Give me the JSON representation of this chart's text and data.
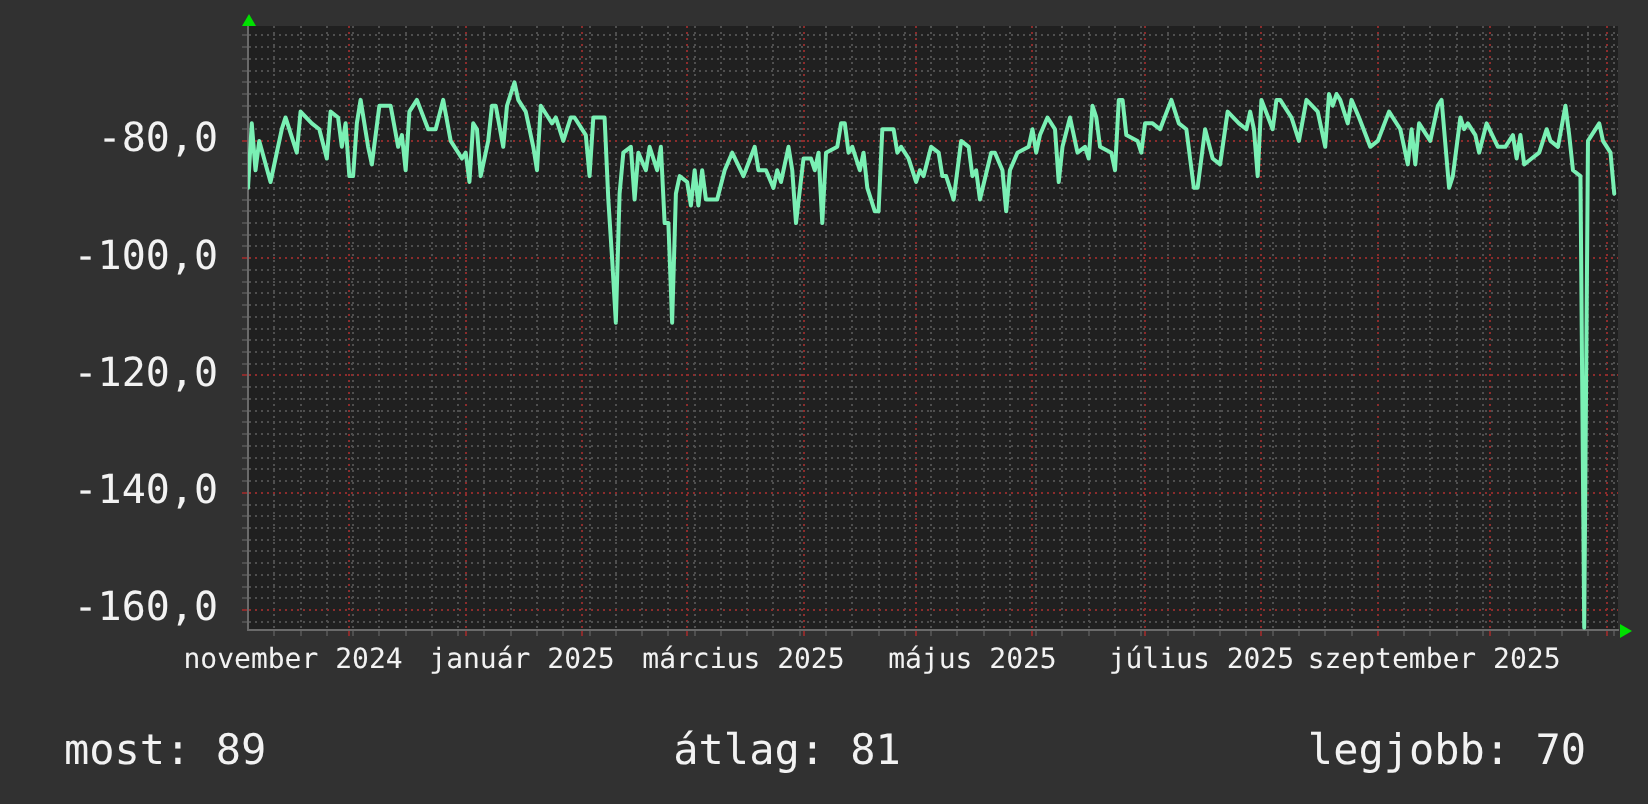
{
  "chart_data": {
    "type": "line",
    "color": "#7af0b4",
    "x": [
      "2024-11-04",
      "2024-11-05",
      "2024-11-06",
      "2024-11-07",
      "2024-11-10",
      "2024-11-13",
      "2024-11-14",
      "2024-11-17",
      "2024-11-18",
      "2024-11-21",
      "2024-11-23",
      "2024-11-25",
      "2024-11-26",
      "2024-11-28",
      "2024-11-29",
      "2024-11-30",
      "2024-12-01",
      "2024-12-02",
      "2024-12-03",
      "2024-12-04",
      "2024-12-06",
      "2024-12-07",
      "2024-12-09",
      "2024-12-12",
      "2024-12-14",
      "2024-12-15",
      "2024-12-16",
      "2024-12-17",
      "2024-12-19",
      "2024-12-22",
      "2024-12-24",
      "2024-12-26",
      "2024-12-28",
      "2024-12-31",
      "2025-01-01",
      "2025-01-02",
      "2025-01-03",
      "2025-01-04",
      "2025-01-05",
      "2025-01-07",
      "2025-01-08",
      "2025-01-09",
      "2025-01-11",
      "2025-01-12",
      "2025-01-14",
      "2025-01-15",
      "2025-01-17",
      "2025-01-19",
      "2025-01-20",
      "2025-01-21",
      "2025-01-23",
      "2025-01-24",
      "2025-01-25",
      "2025-01-27",
      "2025-01-29",
      "2025-01-30",
      "2025-02-02",
      "2025-02-03",
      "2025-02-04",
      "2025-02-07",
      "2025-02-08",
      "2025-02-09",
      "2025-02-10",
      "2025-02-11",
      "2025-02-12",
      "2025-02-14",
      "2025-02-15",
      "2025-02-16",
      "2025-02-18",
      "2025-02-19",
      "2025-02-21",
      "2025-02-22",
      "2025-02-23",
      "2025-02-24",
      "2025-02-25",
      "2025-02-26",
      "2025-02-27",
      "2025-03-01",
      "2025-03-02",
      "2025-03-03",
      "2025-03-04",
      "2025-03-05",
      "2025-03-06",
      "2025-03-09",
      "2025-03-11",
      "2025-03-13",
      "2025-03-16",
      "2025-03-19",
      "2025-03-20",
      "2025-03-22",
      "2025-03-24",
      "2025-03-25",
      "2025-03-26",
      "2025-03-28",
      "2025-03-29",
      "2025-03-30",
      "2025-04-01",
      "2025-04-03",
      "2025-04-04",
      "2025-04-05",
      "2025-04-06",
      "2025-04-07",
      "2025-04-10",
      "2025-04-11",
      "2025-04-12",
      "2025-04-13",
      "2025-04-14",
      "2025-04-16",
      "2025-04-17",
      "2025-04-18",
      "2025-04-20",
      "2025-04-21",
      "2025-04-22",
      "2025-04-25",
      "2025-04-26",
      "2025-04-27",
      "2025-04-29",
      "2025-05-01",
      "2025-05-02",
      "2025-05-03",
      "2025-05-05",
      "2025-05-07",
      "2025-05-08",
      "2025-05-09",
      "2025-05-11",
      "2025-05-13",
      "2025-05-15",
      "2025-05-16",
      "2025-05-17",
      "2025-05-18",
      "2025-05-21",
      "2025-05-22",
      "2025-05-24",
      "2025-05-25",
      "2025-05-26",
      "2025-05-28",
      "2025-05-31",
      "2025-06-01",
      "2025-06-02",
      "2025-06-03",
      "2025-06-05",
      "2025-06-07",
      "2025-06-08",
      "2025-06-09",
      "2025-06-11",
      "2025-06-13",
      "2025-06-15",
      "2025-06-16",
      "2025-06-17",
      "2025-06-18",
      "2025-06-19",
      "2025-06-22",
      "2025-06-23",
      "2025-06-24",
      "2025-06-25",
      "2025-06-26",
      "2025-06-29",
      "2025-06-30",
      "2025-07-01",
      "2025-07-03",
      "2025-07-05",
      "2025-07-08",
      "2025-07-10",
      "2025-07-12",
      "2025-07-14",
      "2025-07-15",
      "2025-07-17",
      "2025-07-19",
      "2025-07-21",
      "2025-07-23",
      "2025-07-26",
      "2025-07-28",
      "2025-07-29",
      "2025-07-30",
      "2025-07-31",
      "2025-08-01",
      "2025-08-04",
      "2025-08-05",
      "2025-08-06",
      "2025-08-09",
      "2025-08-11",
      "2025-08-13",
      "2025-08-16",
      "2025-08-18",
      "2025-08-19",
      "2025-08-20",
      "2025-08-21",
      "2025-08-22",
      "2025-08-24",
      "2025-08-25",
      "2025-08-27",
      "2025-08-30",
      "2025-09-01",
      "2025-09-04",
      "2025-09-07",
      "2025-09-09",
      "2025-09-10",
      "2025-09-11",
      "2025-09-12",
      "2025-09-14",
      "2025-09-15",
      "2025-09-17",
      "2025-09-18",
      "2025-09-20",
      "2025-09-21",
      "2025-09-23",
      "2025-09-24",
      "2025-09-25",
      "2025-09-27",
      "2025-09-28",
      "2025-09-30",
      "2025-10-03",
      "2025-10-05",
      "2025-10-07",
      "2025-10-08",
      "2025-10-09",
      "2025-10-10",
      "2025-10-12",
      "2025-10-14",
      "2025-10-16",
      "2025-10-17",
      "2025-10-19",
      "2025-10-21",
      "2025-10-22",
      "2025-10-23",
      "2025-10-25",
      "2025-10-26",
      "2025-10-27",
      "2025-10-30",
      "2025-10-31",
      "2025-11-02",
      "2025-11-03"
    ],
    "values": [
      -88,
      -77,
      -85,
      -80,
      -87,
      -78,
      -76,
      -82,
      -75,
      -77,
      -78,
      -83,
      -75,
      -76,
      -81,
      -77,
      -86,
      -86,
      -77,
      -73,
      -81,
      -84,
      -74,
      -74,
      -81,
      -79,
      -85,
      -75,
      -73,
      -78,
      -78,
      -73,
      -80,
      -83,
      -82,
      -87,
      -77,
      -78,
      -86,
      -80,
      -74,
      -74,
      -81,
      -74,
      -70,
      -73,
      -75,
      -81,
      -85,
      -74,
      -76,
      -77,
      -76,
      -80,
      -76,
      -76,
      -79,
      -86,
      -76,
      -76,
      -90,
      -100,
      -111,
      -89,
      -82,
      -81,
      -90,
      -82,
      -85,
      -81,
      -85,
      -81,
      -94,
      -94,
      -111,
      -89,
      -86,
      -87,
      -91,
      -85,
      -91,
      -85,
      -90,
      -90,
      -85,
      -82,
      -86,
      -81,
      -85,
      -85,
      -88,
      -85,
      -87,
      -81,
      -85,
      -94,
      -83,
      -83,
      -85,
      -82,
      -94,
      -82,
      -81,
      -77,
      -77,
      -82,
      -81,
      -85,
      -82,
      -88,
      -92,
      -92,
      -78,
      -78,
      -82,
      -81,
      -83,
      -87,
      -85,
      -86,
      -81,
      -82,
      -86,
      -86,
      -90,
      -80,
      -81,
      -86,
      -85,
      -90,
      -82,
      -82,
      -85,
      -92,
      -85,
      -82,
      -81,
      -78,
      -82,
      -79,
      -76,
      -78,
      -87,
      -81,
      -76,
      -82,
      -81,
      -83,
      -74,
      -76,
      -81,
      -82,
      -85,
      -73,
      -73,
      -79,
      -80,
      -82,
      -77,
      -77,
      -78,
      -73,
      -77,
      -78,
      -88,
      -88,
      -78,
      -83,
      -84,
      -75,
      -77,
      -78,
      -75,
      -78,
      -86,
      -73,
      -78,
      -73,
      -73,
      -76,
      -80,
      -73,
      -75,
      -81,
      -72,
      -74,
      -72,
      -73,
      -77,
      -73,
      -76,
      -81,
      -80,
      -75,
      -78,
      -84,
      -78,
      -84,
      -77,
      -79,
      -80,
      -74,
      -73,
      -88,
      -86,
      -76,
      -78,
      -77,
      -79,
      -82,
      -77,
      -81,
      -81,
      -79,
      -83,
      -79,
      -84,
      -83,
      -82,
      -78,
      -80,
      -81,
      -74,
      -79,
      -85,
      -86,
      -163,
      -80,
      -77,
      -80,
      -82,
      -89
    ],
    "xlim": [
      "2024-11-04",
      "2025-11-04"
    ],
    "xticks": [
      {
        "value": "2024-11-11",
        "label": null
      },
      {
        "value": "2024-11-16",
        "label": "november 2024"
      },
      {
        "value": "2024-11-18",
        "label": null
      },
      {
        "value": "2024-11-25",
        "label": null
      },
      {
        "value": "2024-12-01",
        "label": null
      },
      {
        "value": "2024-12-02",
        "label": null
      },
      {
        "value": "2024-12-09",
        "label": null
      },
      {
        "value": "2024-12-16",
        "label": null
      },
      {
        "value": "2024-12-23",
        "label": null
      },
      {
        "value": "2024-12-30",
        "label": null
      },
      {
        "value": "2025-01-01",
        "label": null
      },
      {
        "value": "2025-01-06",
        "label": null
      },
      {
        "value": "2025-01-13",
        "label": null
      },
      {
        "value": "2025-01-16",
        "label": "január 2025"
      },
      {
        "value": "2025-01-20",
        "label": null
      },
      {
        "value": "2025-01-27",
        "label": null
      },
      {
        "value": "2025-02-01",
        "label": null
      },
      {
        "value": "2025-02-03",
        "label": null
      },
      {
        "value": "2025-02-10",
        "label": null
      },
      {
        "value": "2025-02-17",
        "label": null
      },
      {
        "value": "2025-02-24",
        "label": null
      },
      {
        "value": "2025-03-01",
        "label": null
      },
      {
        "value": "2025-03-03",
        "label": null
      },
      {
        "value": "2025-03-10",
        "label": null
      },
      {
        "value": "2025-03-16",
        "label": "március 2025"
      },
      {
        "value": "2025-03-17",
        "label": null
      },
      {
        "value": "2025-03-24",
        "label": null
      },
      {
        "value": "2025-03-31",
        "label": null
      },
      {
        "value": "2025-04-01",
        "label": null
      },
      {
        "value": "2025-04-07",
        "label": null
      },
      {
        "value": "2025-04-14",
        "label": null
      },
      {
        "value": "2025-04-21",
        "label": null
      },
      {
        "value": "2025-04-28",
        "label": null
      },
      {
        "value": "2025-05-01",
        "label": null
      },
      {
        "value": "2025-05-05",
        "label": null
      },
      {
        "value": "2025-05-12",
        "label": null
      },
      {
        "value": "2025-05-16",
        "label": "május 2025"
      },
      {
        "value": "2025-05-19",
        "label": null
      },
      {
        "value": "2025-05-26",
        "label": null
      },
      {
        "value": "2025-06-01",
        "label": null
      },
      {
        "value": "2025-06-02",
        "label": null
      },
      {
        "value": "2025-06-09",
        "label": null
      },
      {
        "value": "2025-06-16",
        "label": null
      },
      {
        "value": "2025-06-23",
        "label": null
      },
      {
        "value": "2025-06-30",
        "label": null
      },
      {
        "value": "2025-07-01",
        "label": null
      },
      {
        "value": "2025-07-07",
        "label": null
      },
      {
        "value": "2025-07-14",
        "label": null
      },
      {
        "value": "2025-07-16",
        "label": "július 2025"
      },
      {
        "value": "2025-07-21",
        "label": null
      },
      {
        "value": "2025-07-28",
        "label": null
      },
      {
        "value": "2025-08-01",
        "label": null
      },
      {
        "value": "2025-08-04",
        "label": null
      },
      {
        "value": "2025-08-11",
        "label": null
      },
      {
        "value": "2025-08-18",
        "label": null
      },
      {
        "value": "2025-08-25",
        "label": null
      },
      {
        "value": "2025-09-01",
        "label": null
      },
      {
        "value": "2025-09-08",
        "label": null
      },
      {
        "value": "2025-09-15",
        "label": null
      },
      {
        "value": "2025-09-16",
        "label": "szeptember 2025"
      },
      {
        "value": "2025-09-22",
        "label": null
      },
      {
        "value": "2025-09-29",
        "label": null
      },
      {
        "value": "2025-10-01",
        "label": null
      },
      {
        "value": "2025-10-06",
        "label": null
      },
      {
        "value": "2025-10-13",
        "label": null
      },
      {
        "value": "2025-10-20",
        "label": null
      },
      {
        "value": "2025-10-27",
        "label": null
      },
      {
        "value": "2025-11-01",
        "label": null
      },
      {
        "value": "2025-11-03",
        "label": null
      }
    ],
    "ylim": [
      -163.4,
      -60.4
    ],
    "yticks": [
      {
        "value": -162,
        "label": null
      },
      {
        "value": -160,
        "label": "-160,0"
      },
      {
        "value": -158,
        "label": null
      },
      {
        "value": -156,
        "label": null
      },
      {
        "value": -154,
        "label": null
      },
      {
        "value": -152,
        "label": null
      },
      {
        "value": -150,
        "label": null
      },
      {
        "value": -148,
        "label": null
      },
      {
        "value": -146,
        "label": null
      },
      {
        "value": -144,
        "label": null
      },
      {
        "value": -142,
        "label": null
      },
      {
        "value": -140,
        "label": "-140,0"
      },
      {
        "value": -138,
        "label": null
      },
      {
        "value": -136,
        "label": null
      },
      {
        "value": -134,
        "label": null
      },
      {
        "value": -132,
        "label": null
      },
      {
        "value": -130,
        "label": null
      },
      {
        "value": -128,
        "label": null
      },
      {
        "value": -126,
        "label": null
      },
      {
        "value": -124,
        "label": null
      },
      {
        "value": -122,
        "label": null
      },
      {
        "value": -120,
        "label": "-120,0"
      },
      {
        "value": -118,
        "label": null
      },
      {
        "value": -116,
        "label": null
      },
      {
        "value": -114,
        "label": null
      },
      {
        "value": -112,
        "label": null
      },
      {
        "value": -110,
        "label": null
      },
      {
        "value": -108,
        "label": null
      },
      {
        "value": -106,
        "label": null
      },
      {
        "value": -104,
        "label": null
      },
      {
        "value": -102,
        "label": null
      },
      {
        "value": -100,
        "label": "-100,0"
      },
      {
        "value": -98,
        "label": null
      },
      {
        "value": -96,
        "label": null
      },
      {
        "value": -94,
        "label": null
      },
      {
        "value": -92,
        "label": null
      },
      {
        "value": -90,
        "label": null
      },
      {
        "value": -88,
        "label": null
      },
      {
        "value": -86,
        "label": null
      },
      {
        "value": -84,
        "label": null
      },
      {
        "value": -82,
        "label": null
      },
      {
        "value": -80,
        "label": "-80,0"
      },
      {
        "value": -78,
        "label": null
      },
      {
        "value": -76,
        "label": null
      },
      {
        "value": -74,
        "label": null
      },
      {
        "value": -72,
        "label": null
      },
      {
        "value": -70,
        "label": null
      },
      {
        "value": -68,
        "label": null
      },
      {
        "value": -66,
        "label": null
      },
      {
        "value": -64,
        "label": null
      },
      {
        "value": -62,
        "label": null
      }
    ],
    "grid": true,
    "annotations": [
      "most: 89",
      "átlag: 81",
      "legjobb: 70"
    ]
  }
}
